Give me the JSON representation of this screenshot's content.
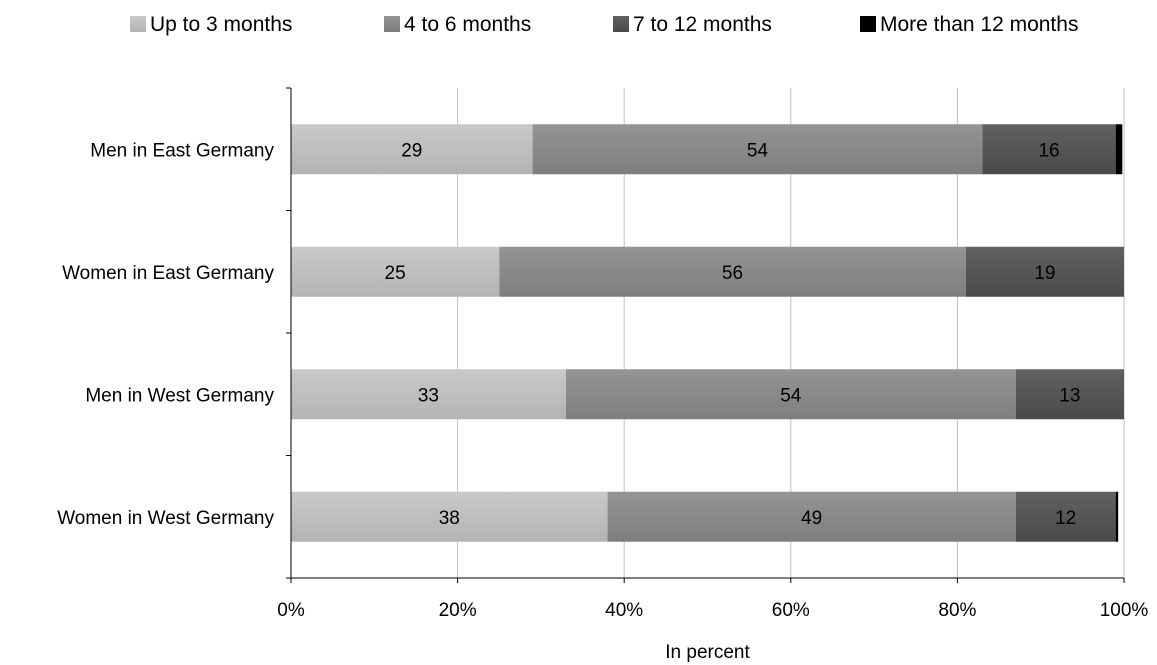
{
  "chart_data": {
    "type": "bar",
    "orientation": "horizontal",
    "stacked": true,
    "categories": [
      "Men in East Germany",
      "Women in East Germany",
      "Men in West Germany",
      "Women in West Germany"
    ],
    "series": [
      {
        "name": "Up to 3 months",
        "values": [
          29,
          25,
          33,
          38
        ],
        "value_labels": [
          "29",
          "25",
          "33",
          "38"
        ]
      },
      {
        "name": "4 to 6 months",
        "values": [
          54,
          56,
          54,
          49
        ],
        "value_labels": [
          "54",
          "56",
          "54",
          "49"
        ]
      },
      {
        "name": "7 to 12 months",
        "values": [
          16,
          19,
          13,
          12
        ],
        "value_labels": [
          "16",
          "19",
          "13",
          "12"
        ]
      },
      {
        "name": "More than 12 months",
        "values": [
          0.8,
          0.7,
          0.8,
          0.3
        ],
        "value_labels": [
          "",
          "",
          "",
          ""
        ]
      }
    ],
    "xlabel": "In percent",
    "ylabel": "",
    "xlim": [
      0,
      100
    ],
    "x_ticks": [
      "0%",
      "20%",
      "40%",
      "60%",
      "80%",
      "100%"
    ],
    "grid": "vertical",
    "legend_position": "top",
    "colors": {
      "series": [
        "#b4b4b4",
        "#7e7e7e",
        "#4a4a4a",
        "#000000"
      ],
      "gradient_light": [
        "#c9c9c9",
        "#949494",
        "#616161",
        "#000000"
      ],
      "grid": "#c0c0c0",
      "axis": "#000000"
    }
  }
}
